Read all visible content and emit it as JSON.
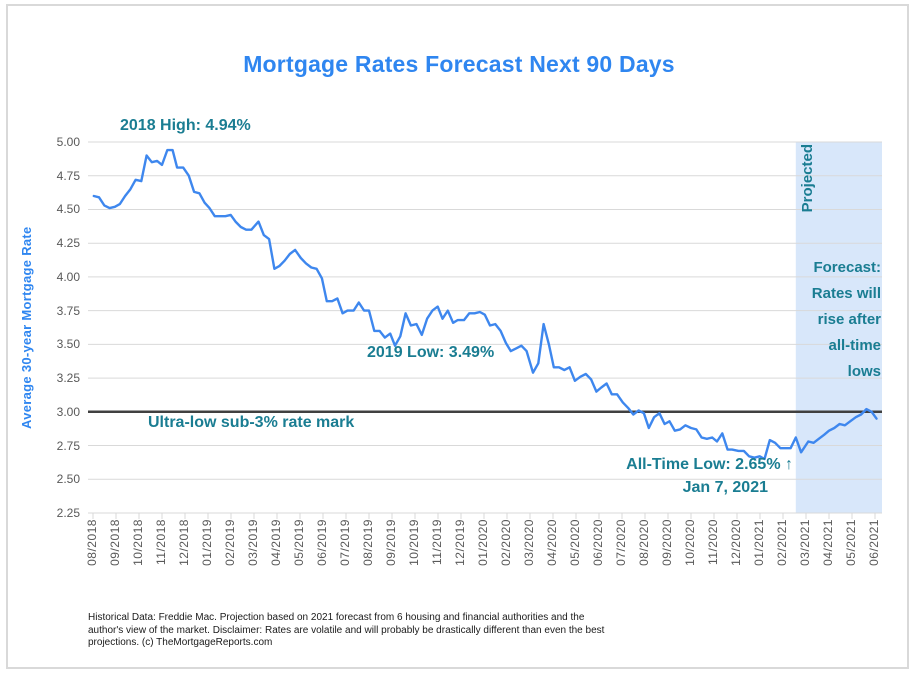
{
  "title": "Mortgage Rates Forecast Next 90 Days",
  "colors": {
    "title_blue": "#2f86f0",
    "line_blue": "#3e87ee",
    "annotation_teal": "#1a7d92",
    "projected_fill": "#d8e7fa",
    "gridline": "#d9d9d9",
    "reference_line": "#404040",
    "axis_text": "#595959",
    "frame_border": "#d9d9d9"
  },
  "annotations": {
    "high_2018": "2018 High: 4.94%",
    "low_2019": "2019 Low: 3.49%",
    "sub3_label": "Ultra-low sub-3% rate mark",
    "all_time_low": "All-Time Low: 2.65% ↑",
    "all_time_low_date": "Jan 7, 2021",
    "projected_label": "Projected",
    "forecast_note": "Forecast:\nRates will\nrise after\nall-time\nlows"
  },
  "footer": "Historical Data: Freddie Mac.  Projection based on 2021 forecast from 6 housing and financial authorities and the\nauthor's view of the market. Disclaimer: Rates are volatile and will probably be drastically different than even the best\nprojections. (c) TheMortgageReports.com",
  "chart_data": {
    "type": "line",
    "title": "Mortgage Rates Forecast Next 90 Days",
    "xlabel": "",
    "ylabel": "Average 30-year Mortgage Rate",
    "ylim": [
      2.25,
      5.0
    ],
    "ytick_step": 0.25,
    "grid": "horizontal",
    "legend": "none",
    "x_tick_labels": [
      "08/2018",
      "09/2018",
      "10/2018",
      "11/2018",
      "12/2018",
      "01/2019",
      "02/2019",
      "03/2019",
      "04/2019",
      "05/2019",
      "06/2019",
      "07/2019",
      "08/2019",
      "09/2019",
      "10/2019",
      "11/2019",
      "12/2019",
      "01/2020",
      "02/2020",
      "03/2020",
      "04/2020",
      "05/2020",
      "06/2020",
      "07/2020",
      "08/2020",
      "09/2020",
      "10/2020",
      "11/2020",
      "12/2020",
      "01/2021",
      "02/2021",
      "03/2021",
      "04/2021",
      "05/2021",
      "06/2021"
    ],
    "reference_line": {
      "value": 3.0,
      "label": "Ultra-low sub-3% rate mark"
    },
    "projected_region": {
      "start": "2021-02-18",
      "end": "2021-06-30",
      "label": "Projected"
    },
    "key_points": {
      "high_2018": {
        "date": "2018-11-15",
        "value": 4.94
      },
      "low_2019": {
        "date": "2019-09-05",
        "value": 3.49
      },
      "all_time_low": {
        "date": "2021-01-07",
        "value": 2.65
      }
    },
    "series": [
      {
        "name": "Average 30-year mortgage rate (weekly, actual then projected)",
        "projected_from": "2021-02-25",
        "points": [
          [
            "2018-08-02",
            4.6
          ],
          [
            "2018-08-09",
            4.59
          ],
          [
            "2018-08-16",
            4.53
          ],
          [
            "2018-08-23",
            4.51
          ],
          [
            "2018-08-30",
            4.52
          ],
          [
            "2018-09-06",
            4.54
          ],
          [
            "2018-09-13",
            4.6
          ],
          [
            "2018-09-20",
            4.65
          ],
          [
            "2018-09-27",
            4.72
          ],
          [
            "2018-10-04",
            4.71
          ],
          [
            "2018-10-11",
            4.9
          ],
          [
            "2018-10-18",
            4.85
          ],
          [
            "2018-10-25",
            4.86
          ],
          [
            "2018-11-01",
            4.83
          ],
          [
            "2018-11-08",
            4.94
          ],
          [
            "2018-11-15",
            4.94
          ],
          [
            "2018-11-21",
            4.81
          ],
          [
            "2018-11-29",
            4.81
          ],
          [
            "2018-12-06",
            4.75
          ],
          [
            "2018-12-13",
            4.63
          ],
          [
            "2018-12-20",
            4.62
          ],
          [
            "2018-12-27",
            4.55
          ],
          [
            "2019-01-03",
            4.51
          ],
          [
            "2019-01-10",
            4.45
          ],
          [
            "2019-01-17",
            4.45
          ],
          [
            "2019-01-24",
            4.45
          ],
          [
            "2019-01-31",
            4.46
          ],
          [
            "2019-02-07",
            4.41
          ],
          [
            "2019-02-14",
            4.37
          ],
          [
            "2019-02-21",
            4.35
          ],
          [
            "2019-02-28",
            4.35
          ],
          [
            "2019-03-07",
            4.41
          ],
          [
            "2019-03-14",
            4.31
          ],
          [
            "2019-03-21",
            4.28
          ],
          [
            "2019-03-28",
            4.06
          ],
          [
            "2019-04-04",
            4.08
          ],
          [
            "2019-04-11",
            4.12
          ],
          [
            "2019-04-18",
            4.17
          ],
          [
            "2019-04-25",
            4.2
          ],
          [
            "2019-05-02",
            4.14
          ],
          [
            "2019-05-09",
            4.1
          ],
          [
            "2019-05-16",
            4.07
          ],
          [
            "2019-05-23",
            4.06
          ],
          [
            "2019-05-30",
            3.99
          ],
          [
            "2019-06-06",
            3.82
          ],
          [
            "2019-06-13",
            3.82
          ],
          [
            "2019-06-20",
            3.84
          ],
          [
            "2019-06-27",
            3.73
          ],
          [
            "2019-07-03",
            3.75
          ],
          [
            "2019-07-11",
            3.75
          ],
          [
            "2019-07-18",
            3.81
          ],
          [
            "2019-07-25",
            3.75
          ],
          [
            "2019-08-01",
            3.75
          ],
          [
            "2019-08-08",
            3.6
          ],
          [
            "2019-08-15",
            3.6
          ],
          [
            "2019-08-22",
            3.55
          ],
          [
            "2019-08-29",
            3.58
          ],
          [
            "2019-09-05",
            3.49
          ],
          [
            "2019-09-12",
            3.56
          ],
          [
            "2019-09-19",
            3.73
          ],
          [
            "2019-09-26",
            3.64
          ],
          [
            "2019-10-03",
            3.65
          ],
          [
            "2019-10-10",
            3.57
          ],
          [
            "2019-10-17",
            3.69
          ],
          [
            "2019-10-24",
            3.75
          ],
          [
            "2019-10-31",
            3.78
          ],
          [
            "2019-11-07",
            3.69
          ],
          [
            "2019-11-14",
            3.75
          ],
          [
            "2019-11-21",
            3.66
          ],
          [
            "2019-11-27",
            3.68
          ],
          [
            "2019-12-05",
            3.68
          ],
          [
            "2019-12-12",
            3.73
          ],
          [
            "2019-12-19",
            3.73
          ],
          [
            "2019-12-26",
            3.74
          ],
          [
            "2020-01-02",
            3.72
          ],
          [
            "2020-01-09",
            3.64
          ],
          [
            "2020-01-16",
            3.65
          ],
          [
            "2020-01-23",
            3.6
          ],
          [
            "2020-01-30",
            3.51
          ],
          [
            "2020-02-06",
            3.45
          ],
          [
            "2020-02-13",
            3.47
          ],
          [
            "2020-02-20",
            3.49
          ],
          [
            "2020-02-27",
            3.45
          ],
          [
            "2020-03-05",
            3.29
          ],
          [
            "2020-03-12",
            3.36
          ],
          [
            "2020-03-19",
            3.65
          ],
          [
            "2020-03-26",
            3.5
          ],
          [
            "2020-04-02",
            3.33
          ],
          [
            "2020-04-09",
            3.33
          ],
          [
            "2020-04-16",
            3.31
          ],
          [
            "2020-04-23",
            3.33
          ],
          [
            "2020-04-30",
            3.23
          ],
          [
            "2020-05-07",
            3.26
          ],
          [
            "2020-05-14",
            3.28
          ],
          [
            "2020-05-21",
            3.24
          ],
          [
            "2020-05-28",
            3.15
          ],
          [
            "2020-06-04",
            3.18
          ],
          [
            "2020-06-11",
            3.21
          ],
          [
            "2020-06-18",
            3.13
          ],
          [
            "2020-06-25",
            3.13
          ],
          [
            "2020-07-02",
            3.07
          ],
          [
            "2020-07-09",
            3.03
          ],
          [
            "2020-07-16",
            2.98
          ],
          [
            "2020-07-23",
            3.01
          ],
          [
            "2020-07-30",
            2.99
          ],
          [
            "2020-08-06",
            2.88
          ],
          [
            "2020-08-13",
            2.96
          ],
          [
            "2020-08-20",
            2.99
          ],
          [
            "2020-08-27",
            2.91
          ],
          [
            "2020-09-03",
            2.93
          ],
          [
            "2020-09-10",
            2.86
          ],
          [
            "2020-09-17",
            2.87
          ],
          [
            "2020-09-24",
            2.9
          ],
          [
            "2020-10-01",
            2.88
          ],
          [
            "2020-10-08",
            2.87
          ],
          [
            "2020-10-15",
            2.81
          ],
          [
            "2020-10-22",
            2.8
          ],
          [
            "2020-10-29",
            2.81
          ],
          [
            "2020-11-05",
            2.78
          ],
          [
            "2020-11-12",
            2.84
          ],
          [
            "2020-11-19",
            2.72
          ],
          [
            "2020-11-25",
            2.72
          ],
          [
            "2020-12-03",
            2.71
          ],
          [
            "2020-12-10",
            2.71
          ],
          [
            "2020-12-17",
            2.67
          ],
          [
            "2020-12-24",
            2.66
          ],
          [
            "2020-12-31",
            2.67
          ],
          [
            "2021-01-07",
            2.65
          ],
          [
            "2021-01-14",
            2.79
          ],
          [
            "2021-01-21",
            2.77
          ],
          [
            "2021-01-28",
            2.73
          ],
          [
            "2021-02-04",
            2.73
          ],
          [
            "2021-02-11",
            2.73
          ],
          [
            "2021-02-18",
            2.81
          ],
          [
            "2021-02-25",
            2.7
          ],
          [
            "2021-03-04",
            2.78
          ],
          [
            "2021-03-11",
            2.77
          ],
          [
            "2021-03-18",
            2.8
          ],
          [
            "2021-03-25",
            2.83
          ],
          [
            "2021-04-01",
            2.86
          ],
          [
            "2021-04-08",
            2.88
          ],
          [
            "2021-04-15",
            2.91
          ],
          [
            "2021-04-22",
            2.9
          ],
          [
            "2021-04-29",
            2.93
          ],
          [
            "2021-05-06",
            2.96
          ],
          [
            "2021-05-13",
            2.98
          ],
          [
            "2021-05-20",
            3.02
          ],
          [
            "2021-05-27",
            3.0
          ],
          [
            "2021-06-03",
            2.95
          ]
        ]
      }
    ]
  }
}
